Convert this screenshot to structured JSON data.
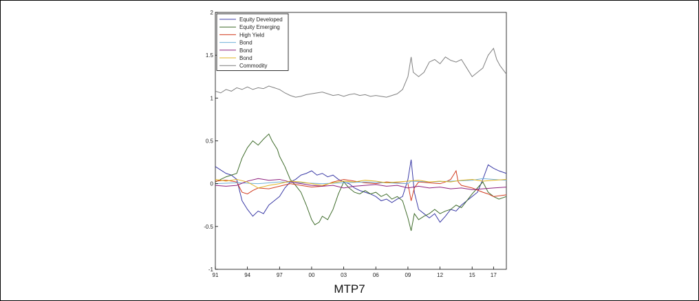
{
  "caption": "MTP7",
  "chart_data": {
    "type": "line",
    "title": "",
    "xlabel": "",
    "ylabel": "",
    "xlim": [
      1991,
      2018.2
    ],
    "ylim": [
      -1,
      2
    ],
    "grid": false,
    "legend_position": "top-left",
    "x_ticks": [
      1991,
      1994,
      1997,
      2000,
      2003,
      2006,
      2009,
      2012,
      2015,
      2017
    ],
    "x_tick_labels": [
      "91",
      "94",
      "97",
      "00",
      "03",
      "06",
      "09",
      "12",
      "15",
      "17"
    ],
    "y_ticks": [
      -1,
      -0.5,
      0,
      0.5,
      1,
      1.5,
      2
    ],
    "y_tick_labels": [
      "-1",
      "-0.5",
      "0",
      "0.5",
      "1",
      "1.5",
      "2"
    ],
    "series": [
      {
        "name": "Equity Developed",
        "color": "#3a3aa6",
        "points": [
          [
            1991,
            0.2
          ],
          [
            1991.5,
            0.16
          ],
          [
            1992,
            0.12
          ],
          [
            1992.5,
            0.1
          ],
          [
            1993,
            0.05
          ],
          [
            1993.5,
            -0.2
          ],
          [
            1994,
            -0.3
          ],
          [
            1994.5,
            -0.38
          ],
          [
            1995,
            -0.32
          ],
          [
            1995.5,
            -0.35
          ],
          [
            1996,
            -0.25
          ],
          [
            1996.5,
            -0.2
          ],
          [
            1997,
            -0.15
          ],
          [
            1997.5,
            -0.05
          ],
          [
            1998,
            0.02
          ],
          [
            1998.5,
            0.05
          ],
          [
            1999,
            0.1
          ],
          [
            1999.5,
            0.12
          ],
          [
            2000,
            0.15
          ],
          [
            2000.5,
            0.1
          ],
          [
            2001,
            0.12
          ],
          [
            2001.5,
            0.08
          ],
          [
            2002,
            0.1
          ],
          [
            2002.5,
            0.05
          ],
          [
            2003,
            0.02
          ],
          [
            2003.5,
            0
          ],
          [
            2004,
            -0.05
          ],
          [
            2004.5,
            -0.08
          ],
          [
            2005,
            -0.1
          ],
          [
            2005.5,
            -0.12
          ],
          [
            2006,
            -0.15
          ],
          [
            2006.5,
            -0.2
          ],
          [
            2007,
            -0.18
          ],
          [
            2007.5,
            -0.22
          ],
          [
            2008,
            -0.18
          ],
          [
            2008.5,
            -0.15
          ],
          [
            2009,
            0.05
          ],
          [
            2009.3,
            0.28
          ],
          [
            2009.6,
            -0.1
          ],
          [
            2010,
            -0.3
          ],
          [
            2010.5,
            -0.35
          ],
          [
            2011,
            -0.4
          ],
          [
            2011.5,
            -0.35
          ],
          [
            2012,
            -0.45
          ],
          [
            2012.5,
            -0.38
          ],
          [
            2013,
            -0.3
          ],
          [
            2013.5,
            -0.32
          ],
          [
            2014,
            -0.25
          ],
          [
            2014.5,
            -0.2
          ],
          [
            2015,
            -0.15
          ],
          [
            2015.5,
            -0.1
          ],
          [
            2016,
            0.05
          ],
          [
            2016.5,
            0.22
          ],
          [
            2017,
            0.18
          ],
          [
            2017.5,
            0.15
          ],
          [
            2018.2,
            0.12
          ]
        ]
      },
      {
        "name": "Equity Emerging",
        "color": "#3e6b2a",
        "points": [
          [
            1991,
            0.02
          ],
          [
            1991.5,
            0.05
          ],
          [
            1992,
            0.08
          ],
          [
            1992.5,
            0.1
          ],
          [
            1993,
            0.12
          ],
          [
            1993.5,
            0.3
          ],
          [
            1994,
            0.42
          ],
          [
            1994.5,
            0.5
          ],
          [
            1995,
            0.45
          ],
          [
            1995.5,
            0.52
          ],
          [
            1996,
            0.58
          ],
          [
            1996.3,
            0.5
          ],
          [
            1996.8,
            0.4
          ],
          [
            1997,
            0.32
          ],
          [
            1997.5,
            0.2
          ],
          [
            1998,
            0.05
          ],
          [
            1998.5,
            -0.02
          ],
          [
            1999,
            -0.1
          ],
          [
            1999.5,
            -0.25
          ],
          [
            2000,
            -0.42
          ],
          [
            2000.3,
            -0.48
          ],
          [
            2000.7,
            -0.45
          ],
          [
            2001,
            -0.38
          ],
          [
            2001.5,
            -0.42
          ],
          [
            2002,
            -0.3
          ],
          [
            2002.5,
            -0.12
          ],
          [
            2003,
            0.02
          ],
          [
            2003.5,
            -0.05
          ],
          [
            2004,
            -0.1
          ],
          [
            2004.5,
            -0.12
          ],
          [
            2005,
            -0.08
          ],
          [
            2005.5,
            -0.12
          ],
          [
            2006,
            -0.1
          ],
          [
            2006.5,
            -0.15
          ],
          [
            2007,
            -0.12
          ],
          [
            2007.5,
            -0.18
          ],
          [
            2008,
            -0.15
          ],
          [
            2008.5,
            -0.2
          ],
          [
            2009,
            -0.4
          ],
          [
            2009.3,
            -0.55
          ],
          [
            2009.6,
            -0.35
          ],
          [
            2010,
            -0.42
          ],
          [
            2010.5,
            -0.38
          ],
          [
            2011,
            -0.35
          ],
          [
            2011.5,
            -0.3
          ],
          [
            2012,
            -0.35
          ],
          [
            2012.5,
            -0.32
          ],
          [
            2013,
            -0.3
          ],
          [
            2013.5,
            -0.25
          ],
          [
            2014,
            -0.28
          ],
          [
            2014.5,
            -0.2
          ],
          [
            2015,
            -0.12
          ],
          [
            2015.5,
            -0.05
          ],
          [
            2016,
            0.02
          ],
          [
            2016.5,
            -0.1
          ],
          [
            2017,
            -0.15
          ],
          [
            2017.5,
            -0.18
          ],
          [
            2018.2,
            -0.15
          ]
        ]
      },
      {
        "name": "High Yield",
        "color": "#d13b1f",
        "points": [
          [
            1991,
            0.03
          ],
          [
            1992,
            0.04
          ],
          [
            1993,
            0.02
          ],
          [
            1993.5,
            -0.1
          ],
          [
            1994,
            -0.12
          ],
          [
            1994.5,
            -0.08
          ],
          [
            1995,
            -0.05
          ],
          [
            1996,
            -0.06
          ],
          [
            1997,
            -0.03
          ],
          [
            1998,
            0
          ],
          [
            1999,
            -0.02
          ],
          [
            2000,
            -0.04
          ],
          [
            2001,
            -0.03
          ],
          [
            2002,
            0.02
          ],
          [
            2003,
            0.05
          ],
          [
            2004,
            0.03
          ],
          [
            2005,
            0.01
          ],
          [
            2006,
            0
          ],
          [
            2007,
            0.02
          ],
          [
            2008,
            0.01
          ],
          [
            2009,
            0
          ],
          [
            2009.3,
            -0.2
          ],
          [
            2009.6,
            -0.05
          ],
          [
            2010,
            0.02
          ],
          [
            2011,
            0.01
          ],
          [
            2012,
            0
          ],
          [
            2012.5,
            0.02
          ],
          [
            2013,
            0.05
          ],
          [
            2013.5,
            0.15
          ],
          [
            2013.7,
            0.02
          ],
          [
            2014,
            -0.02
          ],
          [
            2015,
            -0.05
          ],
          [
            2016,
            -0.1
          ],
          [
            2016.5,
            -0.12
          ],
          [
            2017,
            -0.15
          ],
          [
            2018.2,
            -0.13
          ]
        ]
      },
      {
        "name": "Bond",
        "color": "#6fb0d8",
        "points": [
          [
            1991,
            0
          ],
          [
            1993,
            0.01
          ],
          [
            1995,
            0
          ],
          [
            1997,
            0.02
          ],
          [
            1999,
            0.01
          ],
          [
            2001,
            0
          ],
          [
            2003,
            0.01
          ],
          [
            2005,
            0.02
          ],
          [
            2007,
            0.01
          ],
          [
            2009,
            0
          ],
          [
            2009.3,
            0.03
          ],
          [
            2011,
            0.02
          ],
          [
            2013,
            0.03
          ],
          [
            2015,
            0.04
          ],
          [
            2016,
            0.06
          ],
          [
            2017,
            0.05
          ],
          [
            2018.2,
            0.04
          ]
        ]
      },
      {
        "name": "Bond",
        "color": "#8b1a7a",
        "points": [
          [
            1991,
            -0.02
          ],
          [
            1992,
            -0.03
          ],
          [
            1993,
            -0.02
          ],
          [
            1994,
            0.03
          ],
          [
            1995,
            0.06
          ],
          [
            1996,
            0.04
          ],
          [
            1997,
            0.05
          ],
          [
            1998,
            0.02
          ],
          [
            1999,
            0
          ],
          [
            2000,
            -0.02
          ],
          [
            2001,
            -0.03
          ],
          [
            2002,
            -0.02
          ],
          [
            2003,
            -0.05
          ],
          [
            2004,
            -0.03
          ],
          [
            2005,
            -0.02
          ],
          [
            2006,
            -0.01
          ],
          [
            2007,
            -0.03
          ],
          [
            2008,
            -0.02
          ],
          [
            2009,
            -0.05
          ],
          [
            2010,
            -0.03
          ],
          [
            2011,
            -0.05
          ],
          [
            2012,
            -0.04
          ],
          [
            2013,
            -0.06
          ],
          [
            2014,
            -0.05
          ],
          [
            2015,
            -0.07
          ],
          [
            2016,
            -0.06
          ],
          [
            2017,
            -0.05
          ],
          [
            2018.2,
            -0.04
          ]
        ]
      },
      {
        "name": "Bond",
        "color": "#e0b21d",
        "points": [
          [
            1991,
            0.05
          ],
          [
            1992,
            0.03
          ],
          [
            1993,
            0.05
          ],
          [
            1994,
            0.02
          ],
          [
            1995,
            -0.05
          ],
          [
            1996,
            -0.02
          ],
          [
            1997,
            0
          ],
          [
            1998,
            0.03
          ],
          [
            1999,
            0.02
          ],
          [
            2000,
            0
          ],
          [
            2001,
            -0.02
          ],
          [
            2002,
            0.01
          ],
          [
            2003,
            0.03
          ],
          [
            2004,
            0.02
          ],
          [
            2005,
            0.04
          ],
          [
            2006,
            0.03
          ],
          [
            2007,
            0.01
          ],
          [
            2008,
            0.02
          ],
          [
            2009,
            0.03
          ],
          [
            2010,
            0.04
          ],
          [
            2011,
            0.02
          ],
          [
            2012,
            0.03
          ],
          [
            2013,
            0.02
          ],
          [
            2014,
            0.04
          ],
          [
            2015,
            0.05
          ],
          [
            2016,
            0.03
          ],
          [
            2017,
            0.04
          ],
          [
            2018.2,
            0.05
          ]
        ]
      },
      {
        "name": "Commodity",
        "color": "#7f7f7f",
        "points": [
          [
            1991,
            1.08
          ],
          [
            1991.5,
            1.06
          ],
          [
            1992,
            1.1
          ],
          [
            1992.5,
            1.08
          ],
          [
            1993,
            1.12
          ],
          [
            1993.5,
            1.1
          ],
          [
            1994,
            1.13
          ],
          [
            1994.5,
            1.1
          ],
          [
            1995,
            1.12
          ],
          [
            1995.5,
            1.11
          ],
          [
            1996,
            1.14
          ],
          [
            1996.5,
            1.12
          ],
          [
            1997,
            1.1
          ],
          [
            1997.5,
            1.06
          ],
          [
            1998,
            1.03
          ],
          [
            1998.5,
            1.01
          ],
          [
            1999,
            1.02
          ],
          [
            1999.5,
            1.04
          ],
          [
            2000,
            1.05
          ],
          [
            2000.5,
            1.06
          ],
          [
            2001,
            1.07
          ],
          [
            2001.5,
            1.05
          ],
          [
            2002,
            1.03
          ],
          [
            2002.5,
            1.04
          ],
          [
            2003,
            1.02
          ],
          [
            2003.5,
            1.04
          ],
          [
            2004,
            1.05
          ],
          [
            2004.5,
            1.03
          ],
          [
            2005,
            1.04
          ],
          [
            2005.5,
            1.02
          ],
          [
            2006,
            1.03
          ],
          [
            2006.5,
            1.02
          ],
          [
            2007,
            1.01
          ],
          [
            2007.5,
            1.03
          ],
          [
            2008,
            1.05
          ],
          [
            2008.5,
            1.1
          ],
          [
            2009,
            1.25
          ],
          [
            2009.3,
            1.48
          ],
          [
            2009.5,
            1.3
          ],
          [
            2010,
            1.25
          ],
          [
            2010.5,
            1.3
          ],
          [
            2011,
            1.42
          ],
          [
            2011.5,
            1.45
          ],
          [
            2012,
            1.4
          ],
          [
            2012.5,
            1.48
          ],
          [
            2013,
            1.44
          ],
          [
            2013.5,
            1.42
          ],
          [
            2014,
            1.45
          ],
          [
            2014.5,
            1.35
          ],
          [
            2015,
            1.25
          ],
          [
            2015.5,
            1.3
          ],
          [
            2016,
            1.35
          ],
          [
            2016.5,
            1.5
          ],
          [
            2017,
            1.58
          ],
          [
            2017.3,
            1.45
          ],
          [
            2017.6,
            1.38
          ],
          [
            2018.2,
            1.28
          ]
        ]
      }
    ]
  }
}
